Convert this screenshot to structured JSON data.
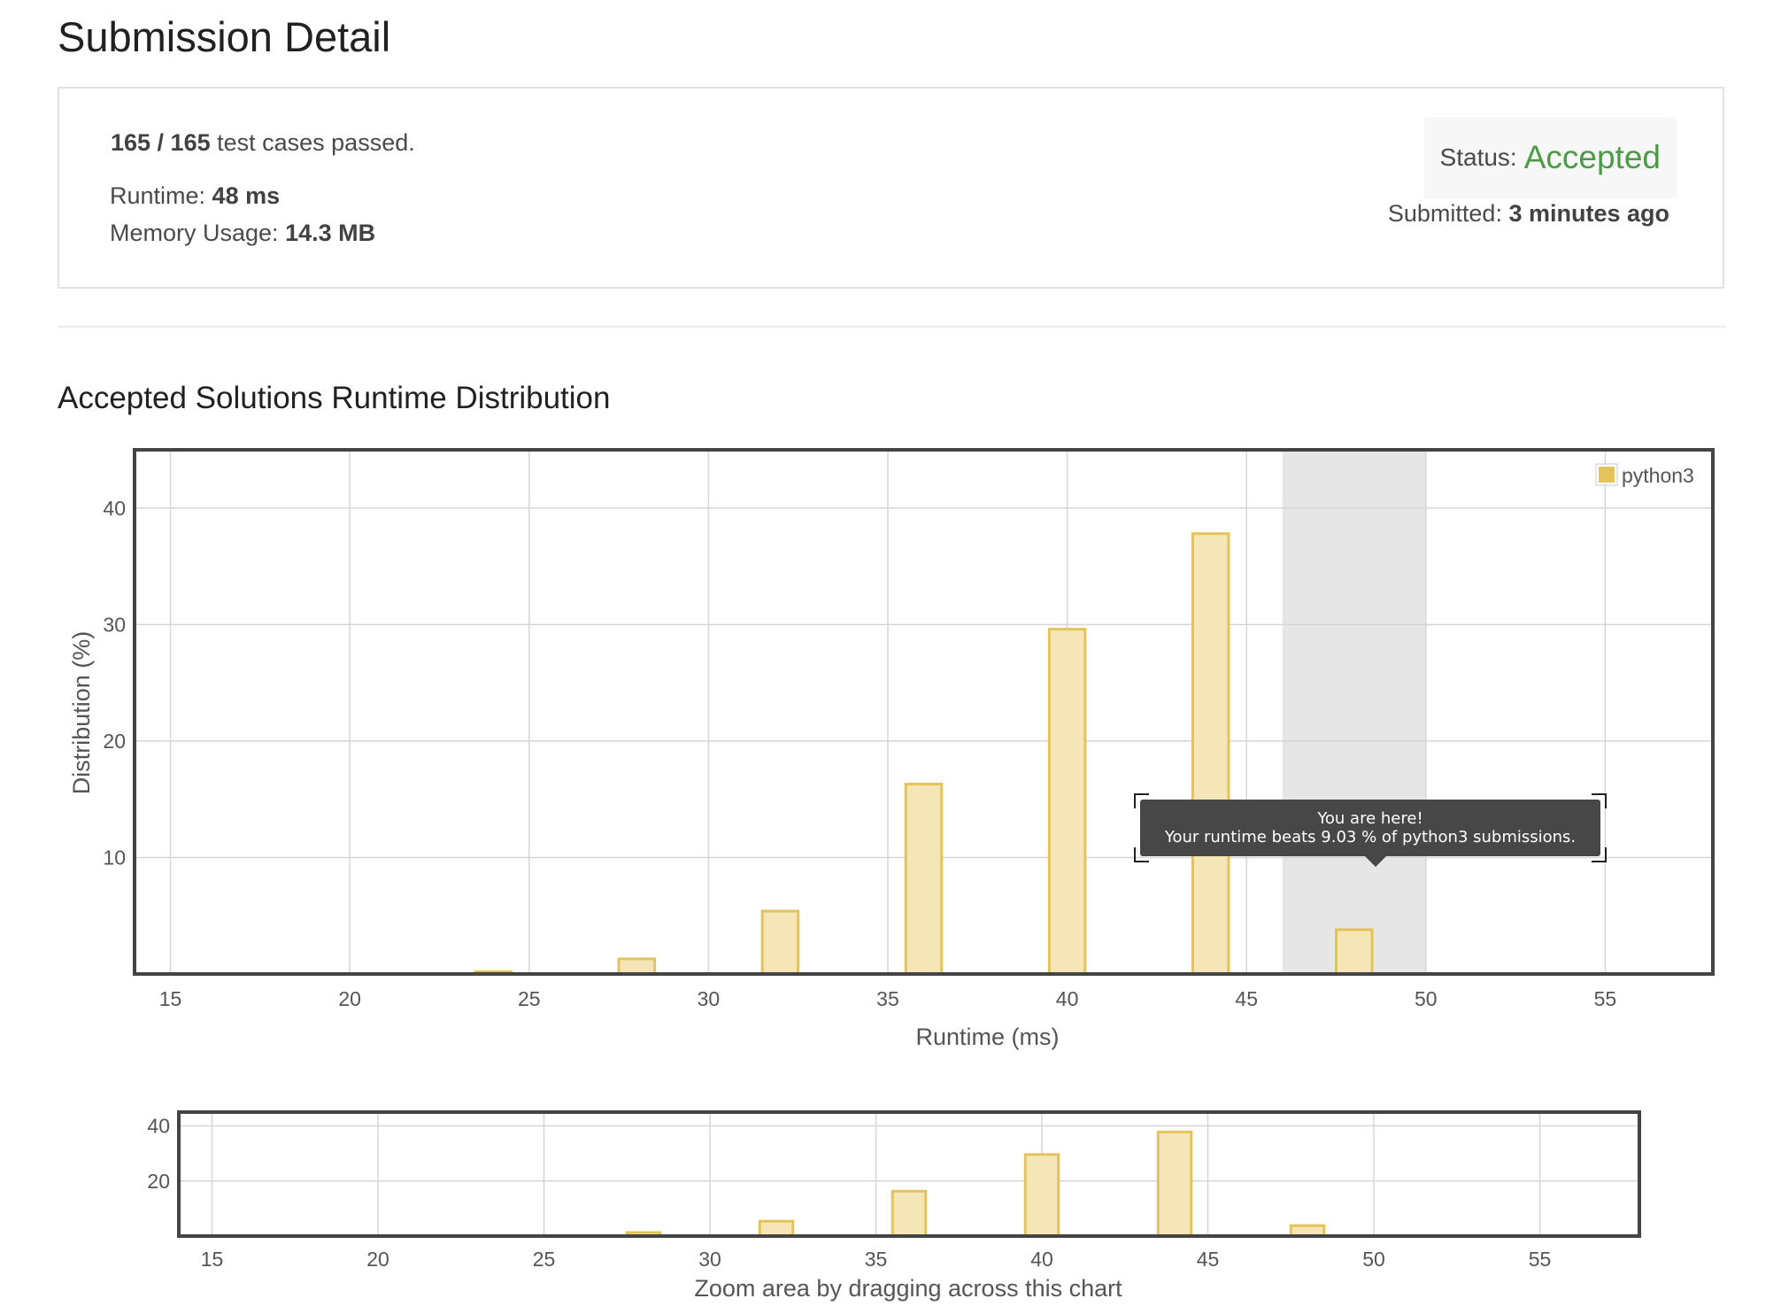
{
  "page": {
    "title": "Submission Detail"
  },
  "summary": {
    "tests_passed": "165 / 165",
    "tests_passed_suffix": " test cases passed.",
    "runtime_label": "Runtime: ",
    "runtime_value": "48 ms",
    "memory_label": "Memory Usage: ",
    "memory_value": "14.3 MB",
    "status_label": "Status:",
    "status_value": "Accepted",
    "submitted_label": "Submitted: ",
    "submitted_value": "3 minutes ago"
  },
  "distribution": {
    "title": "Accepted Solutions Runtime Distribution",
    "tooltip": {
      "line1": "You are here!",
      "line2": "Your runtime beats 9.03 % of python3 submissions."
    },
    "zoom_caption": "Zoom area by dragging across this chart"
  },
  "colors": {
    "accent_green": "#4c9a48",
    "bar_fill": "#f5e6b8",
    "bar_stroke": "#e4c35a",
    "highlight_band": "#e6e6e6",
    "tooltip_bg": "#474747"
  },
  "chart_data": [
    {
      "type": "bar",
      "xlabel": "Runtime (ms)",
      "ylabel": "Distribution (%)",
      "xlim": [
        14,
        58
      ],
      "ylim": [
        0,
        45
      ],
      "xticks": [
        15,
        20,
        25,
        30,
        35,
        40,
        45,
        50,
        55
      ],
      "yticks": [
        10,
        20,
        30,
        40
      ],
      "grid": true,
      "legend": {
        "entries": [
          "python3"
        ],
        "position": "top-right"
      },
      "highlight_range": [
        46,
        50
      ],
      "series": [
        {
          "name": "python3",
          "x": [
            24,
            28,
            32,
            36,
            40,
            44,
            48
          ],
          "values": [
            0.2,
            1.3,
            5.4,
            16.3,
            29.6,
            37.8,
            3.8
          ]
        }
      ]
    },
    {
      "type": "bar",
      "xlim": [
        14,
        58
      ],
      "ylim": [
        0,
        45
      ],
      "xticks": [
        15,
        20,
        25,
        30,
        35,
        40,
        45,
        50,
        55
      ],
      "yticks": [
        20,
        40
      ],
      "grid": true,
      "series": [
        {
          "x": [
            24,
            28,
            32,
            36,
            40,
            44,
            48
          ],
          "values": [
            0.2,
            1.3,
            5.4,
            16.3,
            29.6,
            37.8,
            3.8
          ]
        }
      ]
    }
  ]
}
